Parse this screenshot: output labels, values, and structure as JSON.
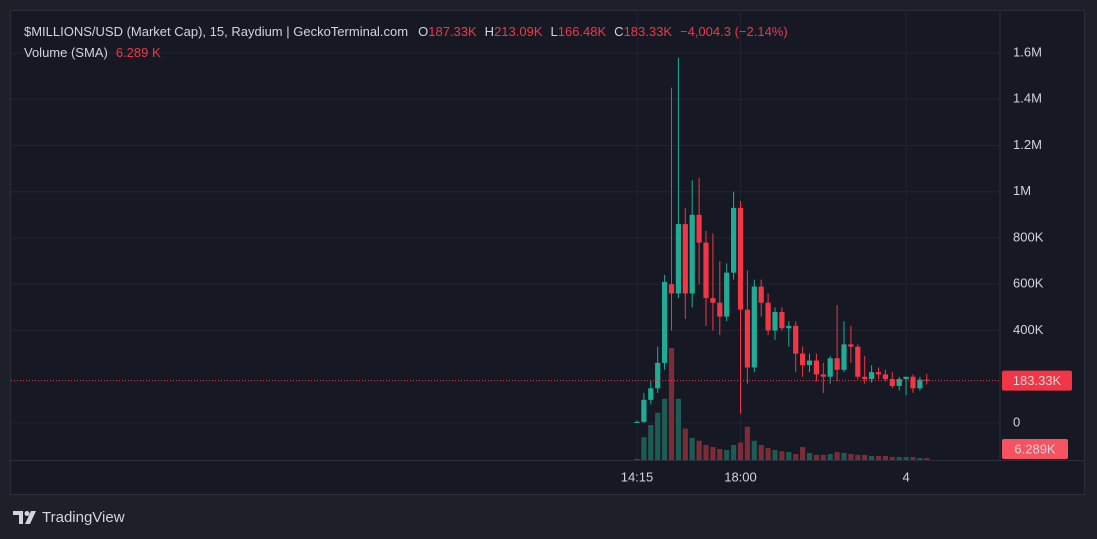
{
  "chart_data": {
    "type": "candlestick",
    "title": "$MILLIONS/USD (Market Cap), 15, Raydium | GeckoTerminal.com",
    "legend_ohlc": [
      {
        "key": "O",
        "value": "187.33K"
      },
      {
        "key": "H",
        "value": "213.09K"
      },
      {
        "key": "L",
        "value": "166.48K"
      },
      {
        "key": "C",
        "value": "183.33K"
      }
    ],
    "change": "−4,004.3 (−2.14%)",
    "volume_title": "Volume (SMA)",
    "volume_sma_text": "6.289 K",
    "brand": "TradingView",
    "categories": [
      "14:15",
      null,
      null,
      null,
      null,
      null,
      null,
      null,
      null,
      null,
      null,
      null,
      null,
      null,
      null,
      "18:00",
      null,
      null,
      null,
      null,
      null,
      null,
      null,
      null,
      null,
      null,
      null,
      null,
      null,
      null,
      null,
      null,
      null,
      null,
      null,
      null,
      null,
      null,
      null,
      "4",
      null,
      null,
      null
    ],
    "open": [
      0,
      5000,
      100000,
      150000,
      260000,
      600000,
      560000,
      860000,
      560000,
      900000,
      780000,
      540000,
      520000,
      460000,
      650000,
      930000,
      490000,
      240000,
      590000,
      520000,
      400000,
      480000,
      410000,
      420000,
      300000,
      250000,
      270000,
      210000,
      200000,
      280000,
      230000,
      340000,
      330000,
      200000,
      190000,
      220000,
      210000,
      190000,
      160000,
      190000,
      200000,
      150000,
      187330
    ],
    "high": [
      10000,
      130000,
      180000,
      330000,
      640000,
      1450000,
      1580000,
      930000,
      1050000,
      1060000,
      830000,
      820000,
      700000,
      690000,
      1000000,
      960000,
      660000,
      620000,
      620000,
      560000,
      500000,
      500000,
      440000,
      440000,
      330000,
      300000,
      300000,
      260000,
      290000,
      510000,
      440000,
      420000,
      340000,
      290000,
      250000,
      240000,
      230000,
      220000,
      200000,
      200000,
      210000,
      200000,
      213090
    ],
    "low": [
      0,
      0,
      80000,
      130000,
      230000,
      400000,
      540000,
      450000,
      500000,
      600000,
      420000,
      400000,
      380000,
      440000,
      620000,
      40000,
      170000,
      220000,
      460000,
      380000,
      360000,
      400000,
      330000,
      220000,
      200000,
      220000,
      180000,
      130000,
      170000,
      180000,
      220000,
      260000,
      190000,
      170000,
      175000,
      190000,
      180000,
      150000,
      140000,
      120000,
      130000,
      140000,
      166480
    ],
    "close": [
      5000,
      100000,
      150000,
      260000,
      610000,
      560000,
      860000,
      560000,
      900000,
      780000,
      540000,
      520000,
      460000,
      650000,
      930000,
      490000,
      240000,
      590000,
      520000,
      400000,
      480000,
      410000,
      420000,
      300000,
      250000,
      270000,
      210000,
      200000,
      280000,
      230000,
      340000,
      330000,
      200000,
      190000,
      220000,
      210000,
      190000,
      160000,
      190000,
      200000,
      150000,
      187330,
      183330
    ],
    "volume": [
      600,
      13000,
      20000,
      27000,
      35000,
      64000,
      35000,
      18000,
      12600,
      11000,
      8600,
      7400,
      6300,
      5700,
      8600,
      10000,
      19000,
      11000,
      8600,
      6900,
      5700,
      5000,
      4600,
      3400,
      7400,
      4000,
      2900,
      2900,
      3400,
      4600,
      4000,
      3400,
      2900,
      2900,
      2300,
      2300,
      2300,
      1700,
      1700,
      1700,
      1700,
      1100,
      1100
    ],
    "ylim": [
      -160000,
      1777000
    ],
    "yticks": [
      0,
      {
        "value": 400000,
        "label": "400K"
      },
      {
        "value": 600000,
        "label": "600K"
      },
      {
        "value": 800000,
        "label": "800K"
      },
      {
        "value": 1000000,
        "label": "1M"
      },
      {
        "value": 1200000,
        "label": "1.2M"
      },
      {
        "value": 1400000,
        "label": "1.4M"
      },
      {
        "value": 1600000,
        "label": "1.6M"
      }
    ],
    "volume_ylim": [
      0,
      68600
    ],
    "last_price": {
      "value": 183330,
      "label": "183.33K"
    },
    "volume_sma": {
      "value": 6289,
      "label": "6.289K"
    },
    "up_color": "#22ab94",
    "down_color": "#f23645",
    "volume_up_color": "#1d5c54",
    "volume_down_color": "#7a2c37",
    "grid": true
  }
}
